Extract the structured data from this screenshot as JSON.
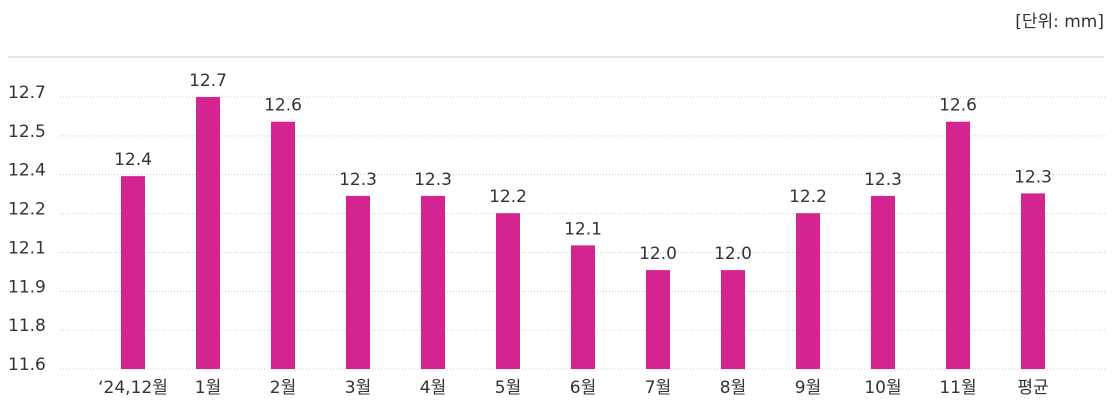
{
  "chart_data": {
    "type": "bar",
    "unit_note": "[단위:  mm]",
    "categories": [
      "‘24,12월",
      "1월",
      "2월",
      "3월",
      "4월",
      "5월",
      "6월",
      "7월",
      "8월",
      "9월",
      "10월",
      "11월",
      "평균"
    ],
    "values": [
      12.38,
      12.7,
      12.6,
      12.3,
      12.3,
      12.23,
      12.1,
      12.0,
      12.0,
      12.23,
      12.3,
      12.6,
      12.31
    ],
    "value_labels": [
      "12.4",
      "12.7",
      "12.6",
      "12.3",
      "12.3",
      "12.2",
      "12.1",
      "12.0",
      "12.0",
      "12.2",
      "12.3",
      "12.6",
      "12.3"
    ],
    "color": "#d4248f",
    "ylim": [
      11.6,
      12.7
    ],
    "yticks": [
      11.6,
      {
        "value": 11.757,
        "label": "11.8"
      },
      {
        "value": 11.914,
        "label": "11.9"
      },
      {
        "value": 12.071,
        "label": "12.1"
      },
      {
        "value": 12.229,
        "label": "12.2"
      },
      {
        "value": 12.386,
        "label": "12.4"
      },
      {
        "value": 12.543,
        "label": "12.5"
      },
      12.7
    ],
    "grid": true
  }
}
